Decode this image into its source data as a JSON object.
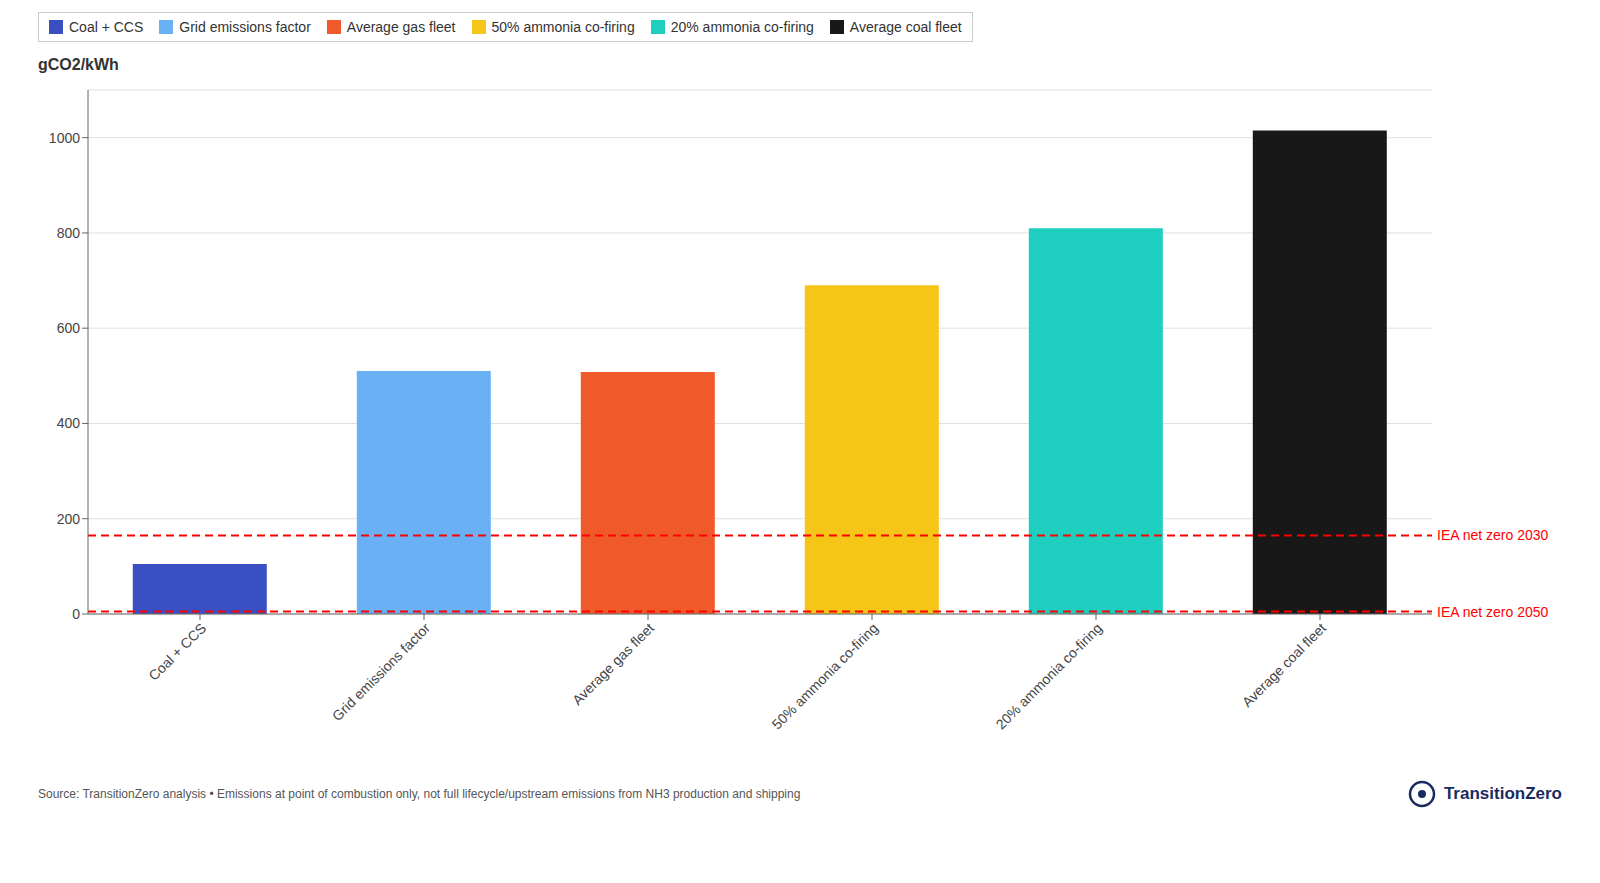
{
  "chart_data": {
    "type": "bar",
    "categories": [
      "Coal + CCS",
      "Grid emissions factor",
      "Average gas fleet",
      "50% ammonia co-firing",
      "20% ammonia co-firing",
      "Average coal fleet"
    ],
    "values": [
      105,
      510,
      508,
      690,
      810,
      1015
    ],
    "colors": [
      "#3a4fc1",
      "#6ab0f5",
      "#f05a2a",
      "#f5c518",
      "#1ecfbf",
      "#181818"
    ],
    "y_label": "gCO2/kWh",
    "ylim": [
      0,
      1100
    ],
    "yticks": [
      0,
      200,
      400,
      600,
      800,
      1000
    ],
    "grid": true,
    "legend": "upper left",
    "annotations": [
      {
        "text": "IEA net zero 2030",
        "y": 165,
        "color": "red",
        "line_style": "dashed"
      },
      {
        "text": "IEA net zero 2050",
        "y": 5,
        "color": "red",
        "line_style": "dashed"
      },
      {
        "text": "Source: TransitionZero analysis • Emissions at point of combustion only, not full lifecycle/upstream emissions from NH3 production and shipping"
      },
      {
        "text": "TransitionZero",
        "color": "#1a2b5e"
      }
    ]
  }
}
